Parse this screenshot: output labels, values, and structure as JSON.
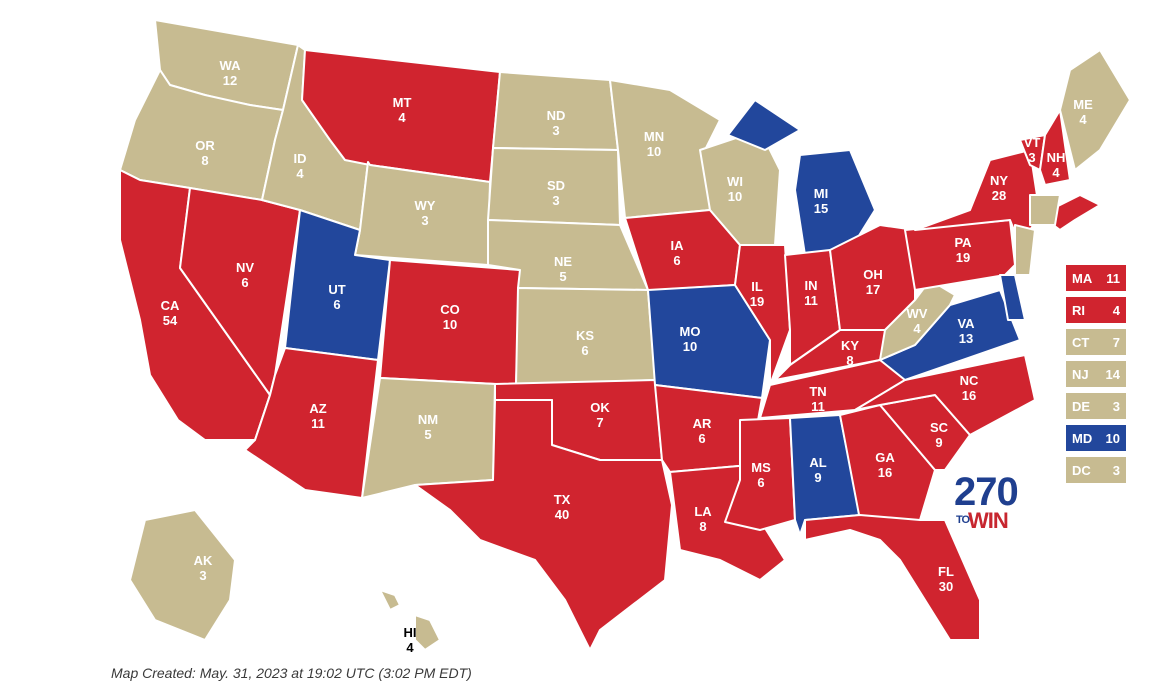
{
  "colors": {
    "red": "#d0242f",
    "blue": "#22479c",
    "tan": "#c7bb91",
    "white": "#ffffff"
  },
  "logo": {
    "num": "270",
    "to": "TO",
    "win": "WIN"
  },
  "footer": "Map Created: May. 31, 2023 at 19:02 UTC (3:02 PM EDT)",
  "states": [
    {
      "abbr": "WA",
      "ev": "12",
      "party": "tan"
    },
    {
      "abbr": "OR",
      "ev": "8",
      "party": "tan"
    },
    {
      "abbr": "CA",
      "ev": "54",
      "party": "red"
    },
    {
      "abbr": "NV",
      "ev": "6",
      "party": "red"
    },
    {
      "abbr": "ID",
      "ev": "4",
      "party": "tan"
    },
    {
      "abbr": "MT",
      "ev": "4",
      "party": "red"
    },
    {
      "abbr": "WY",
      "ev": "3",
      "party": "tan"
    },
    {
      "abbr": "UT",
      "ev": "6",
      "party": "blue"
    },
    {
      "abbr": "AZ",
      "ev": "11",
      "party": "red"
    },
    {
      "abbr": "CO",
      "ev": "10",
      "party": "red"
    },
    {
      "abbr": "NM",
      "ev": "5",
      "party": "tan"
    },
    {
      "abbr": "ND",
      "ev": "3",
      "party": "tan"
    },
    {
      "abbr": "SD",
      "ev": "3",
      "party": "tan"
    },
    {
      "abbr": "NE",
      "ev": "5",
      "party": "tan"
    },
    {
      "abbr": "KS",
      "ev": "6",
      "party": "tan"
    },
    {
      "abbr": "OK",
      "ev": "7",
      "party": "red"
    },
    {
      "abbr": "TX",
      "ev": "40",
      "party": "red"
    },
    {
      "abbr": "MN",
      "ev": "10",
      "party": "tan"
    },
    {
      "abbr": "IA",
      "ev": "6",
      "party": "red"
    },
    {
      "abbr": "MO",
      "ev": "10",
      "party": "blue"
    },
    {
      "abbr": "AR",
      "ev": "6",
      "party": "red"
    },
    {
      "abbr": "LA",
      "ev": "8",
      "party": "red"
    },
    {
      "abbr": "WI",
      "ev": "10",
      "party": "tan"
    },
    {
      "abbr": "IL",
      "ev": "19",
      "party": "red"
    },
    {
      "abbr": "MI",
      "ev": "15",
      "party": "blue"
    },
    {
      "abbr": "IN",
      "ev": "11",
      "party": "red"
    },
    {
      "abbr": "OH",
      "ev": "17",
      "party": "red"
    },
    {
      "abbr": "KY",
      "ev": "8",
      "party": "red"
    },
    {
      "abbr": "TN",
      "ev": "11",
      "party": "red"
    },
    {
      "abbr": "MS",
      "ev": "6",
      "party": "red"
    },
    {
      "abbr": "AL",
      "ev": "9",
      "party": "blue"
    },
    {
      "abbr": "GA",
      "ev": "16",
      "party": "red"
    },
    {
      "abbr": "FL",
      "ev": "30",
      "party": "red"
    },
    {
      "abbr": "SC",
      "ev": "9",
      "party": "red"
    },
    {
      "abbr": "NC",
      "ev": "16",
      "party": "red"
    },
    {
      "abbr": "VA",
      "ev": "13",
      "party": "blue"
    },
    {
      "abbr": "WV",
      "ev": "4",
      "party": "tan"
    },
    {
      "abbr": "PA",
      "ev": "19",
      "party": "red"
    },
    {
      "abbr": "NY",
      "ev": "28",
      "party": "red"
    },
    {
      "abbr": "VT",
      "ev": "3",
      "party": "red"
    },
    {
      "abbr": "NH",
      "ev": "4",
      "party": "red"
    },
    {
      "abbr": "ME",
      "ev": "4",
      "party": "tan"
    },
    {
      "abbr": "AK",
      "ev": "3",
      "party": "tan"
    },
    {
      "abbr": "HI",
      "ev": "4",
      "party": "tan"
    }
  ],
  "small_states": [
    {
      "abbr": "MA",
      "ev": "11",
      "party": "red"
    },
    {
      "abbr": "RI",
      "ev": "4",
      "party": "red"
    },
    {
      "abbr": "CT",
      "ev": "7",
      "party": "tan"
    },
    {
      "abbr": "NJ",
      "ev": "14",
      "party": "tan"
    },
    {
      "abbr": "DE",
      "ev": "3",
      "party": "tan"
    },
    {
      "abbr": "MD",
      "ev": "10",
      "party": "blue"
    },
    {
      "abbr": "DC",
      "ev": "3",
      "party": "tan"
    }
  ]
}
